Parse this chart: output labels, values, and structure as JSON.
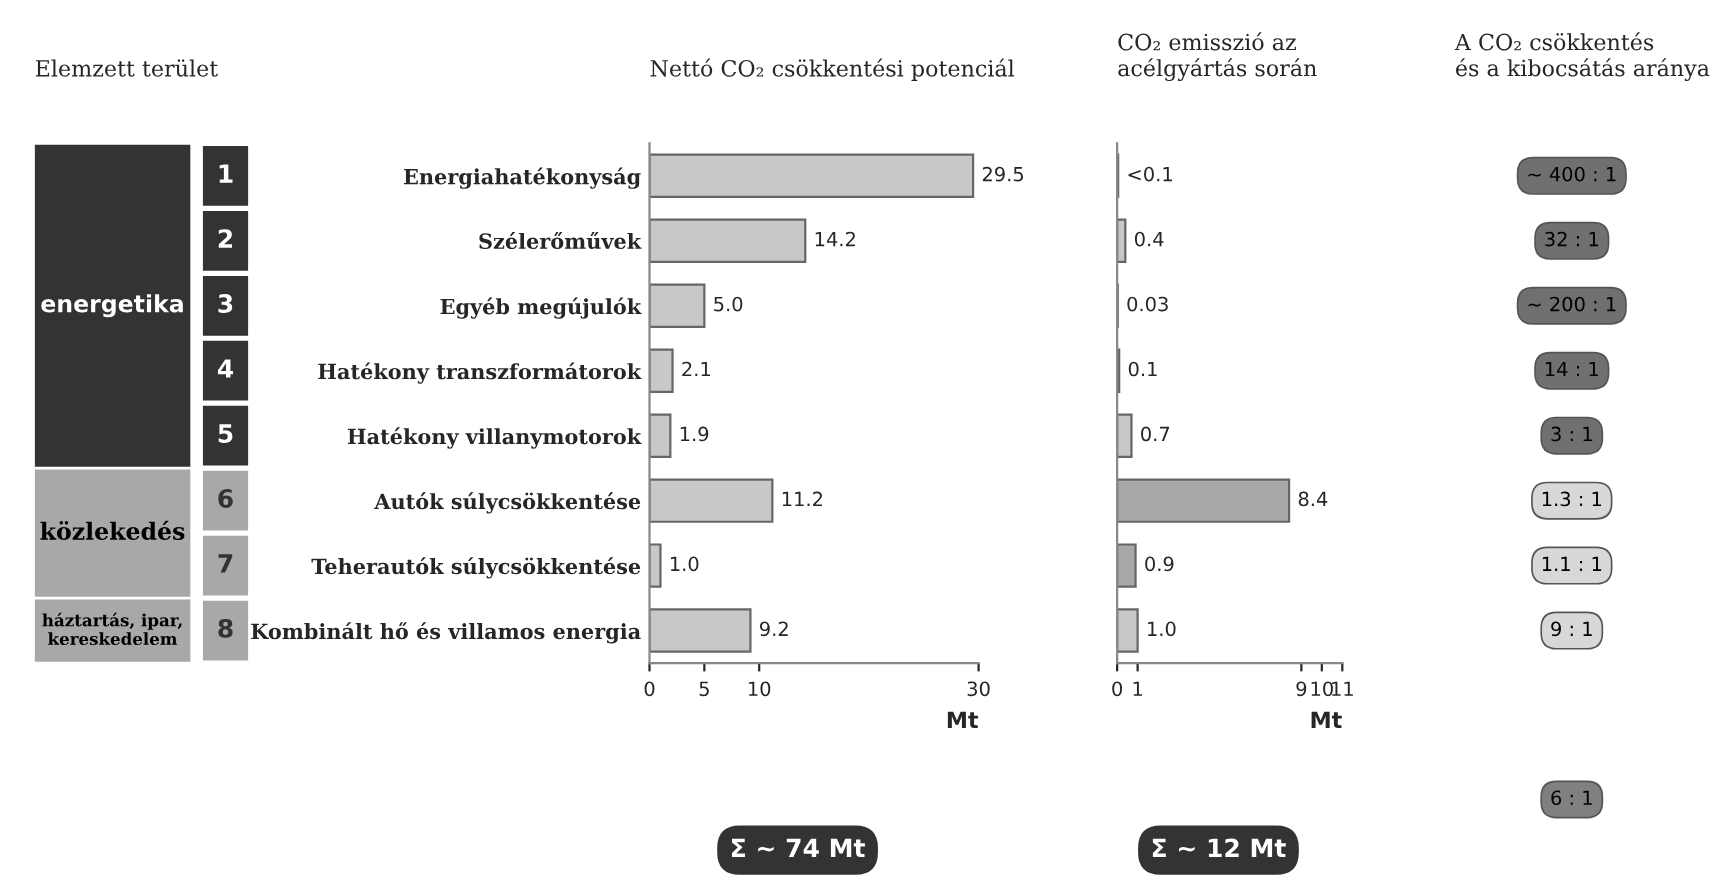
{
  "chart_data": [
    {
      "type": "bar",
      "orientation": "horizontal",
      "title": "Nettó CO₂ csökkentési potenciál",
      "xlabel": "Mt",
      "categories": [
        "Energiahatékonyság",
        "Szélerőművek",
        "Egyéb megújulók",
        "Hatékony transzformátorok",
        "Hatékony villanymotorok",
        "Autók súlycsökkentése",
        "Teherautók súlycsökkentése",
        "Kombinált hő és villamos energia"
      ],
      "values": [
        29.5,
        14.2,
        5.0,
        2.1,
        1.9,
        11.2,
        1.0,
        9.2
      ],
      "color": "#c8c8c8",
      "value_labels": [
        "29.5",
        "14.2",
        "5.0",
        "2.1",
        "1.9",
        "11.2",
        "1.0",
        "9.2"
      ],
      "xlim": [
        0,
        30
      ],
      "xticks": [
        0,
        5,
        10,
        30
      ],
      "annotations": [
        "Elemzett terület",
        "energetika",
        "közlekedés",
        "háztartás, ipar,\nkereskedelem",
        "1",
        "2",
        "3",
        "4",
        "5",
        "6",
        "7",
        "8",
        "Σ ~ 74 Mt"
      ]
    },
    {
      "type": "bar",
      "orientation": "horizontal",
      "title": "CO₂ emisszió az\nacélgyártás során",
      "xlabel": "Mt",
      "categories": [
        null,
        null,
        null,
        null,
        null,
        null,
        null,
        null
      ],
      "values": [
        0.05,
        0.4,
        0.03,
        0.1,
        0.7,
        8.4,
        0.9,
        1.0
      ],
      "value_labels": [
        "<0.1",
        "0.4",
        "0.03",
        "0.1",
        "0.7",
        "8.4",
        "0.9",
        "1.0"
      ],
      "colors": [
        "#c8c8c8",
        "#c8c8c8",
        "#c8c8c8",
        "#c8c8c8",
        "#c8c8c8",
        "#a8a8a8",
        "#a8a8a8",
        "#c8c8c8"
      ],
      "xlim": [
        0,
        11
      ],
      "xticks": [
        0,
        1,
        9,
        10,
        11
      ],
      "tick_labels": "x",
      "annotations": [
        "Σ ~ 12 Mt",
        "A CO₂ csökkentés\nés a kibocsátás aránya",
        "~ 400 : 1",
        "32 : 1",
        "~ 200 : 1",
        "14 : 1",
        "3 : 1",
        "1.3 : 1",
        "1.1 : 1",
        "9 : 1",
        "6 : 1"
      ]
    }
  ]
}
